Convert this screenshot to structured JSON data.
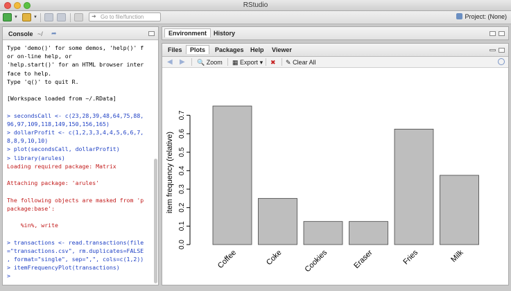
{
  "window": {
    "title": "RStudio"
  },
  "toolbar": {
    "goto_placeholder": "Go to file/function",
    "project_label": "Project: (None)"
  },
  "console": {
    "tab_label": "Console",
    "path": "~/",
    "lines": [
      {
        "text": "Type 'demo()' for some demos, 'help()' f",
        "kind": "out"
      },
      {
        "text": "or on-line help, or",
        "kind": "out"
      },
      {
        "text": "'help.start()' for an HTML browser inter",
        "kind": "out"
      },
      {
        "text": "face to help.",
        "kind": "out"
      },
      {
        "text": "Type 'q()' to quit R.",
        "kind": "out"
      },
      {
        "text": "",
        "kind": "out"
      },
      {
        "text": "[Workspace loaded from ~/.RData]",
        "kind": "out"
      },
      {
        "text": "",
        "kind": "out"
      },
      {
        "text": "> secondsCall <- c(23,28,39,48,64,75,88,",
        "kind": "cmd"
      },
      {
        "text": "96,97,109,118,149,150,156,165)",
        "kind": "cmd"
      },
      {
        "text": "> dollarProfit <- c(1,2,3,3,4,4,5,6,6,7,",
        "kind": "cmd"
      },
      {
        "text": "8,8,9,10,10)",
        "kind": "cmd"
      },
      {
        "text": "> plot(secondsCall, dollarProfit)",
        "kind": "cmd"
      },
      {
        "text": "> library(arules)",
        "kind": "cmd"
      },
      {
        "text": "Loading required package: Matrix",
        "kind": "err"
      },
      {
        "text": "",
        "kind": "out"
      },
      {
        "text": "Attaching package: 'arules'",
        "kind": "err"
      },
      {
        "text": "",
        "kind": "out"
      },
      {
        "text": "The following objects are masked from 'p",
        "kind": "err"
      },
      {
        "text": "package:base':",
        "kind": "err"
      },
      {
        "text": "",
        "kind": "out"
      },
      {
        "text": "    %in%, write",
        "kind": "err"
      },
      {
        "text": "",
        "kind": "out"
      },
      {
        "text": "> transactions <- read.transactions(file",
        "kind": "cmd"
      },
      {
        "text": "=\"transactions.csv\", rm.duplicates=FALSE",
        "kind": "cmd"
      },
      {
        "text": ", format=\"single\", sep=\",\", cols=c(1,2))",
        "kind": "cmd"
      },
      {
        "text": "> itemFrequencyPlot(transactions)",
        "kind": "cmd"
      },
      {
        "text": ">",
        "kind": "cmd"
      }
    ]
  },
  "env_pane": {
    "tabs": [
      "Environment",
      "History"
    ]
  },
  "plot_pane": {
    "tabs": [
      "Files",
      "Plots",
      "Packages",
      "Help",
      "Viewer"
    ],
    "active_tab": "Plots",
    "zoom_label": "Zoom",
    "export_label": "Export",
    "clear_label": "Clear All"
  },
  "chart_data": {
    "type": "bar",
    "categories": [
      "Coffee",
      "Coke",
      "Cookies",
      "Eraser",
      "Fries",
      "Milk"
    ],
    "values": [
      0.75,
      0.25,
      0.125,
      0.125,
      0.625,
      0.375
    ],
    "ylabel": "item frequency (relative)",
    "ylim": [
      0,
      0.75
    ],
    "yticks": [
      "0.0",
      "0.1",
      "0.2",
      "0.3",
      "0.4",
      "0.5",
      "0.6",
      "0.7"
    ],
    "bar_color": "#bebebe",
    "grid": false
  },
  "colors": {
    "command": "#1d3fc4",
    "message": "#c21a1a",
    "bar": "#bebebe"
  }
}
